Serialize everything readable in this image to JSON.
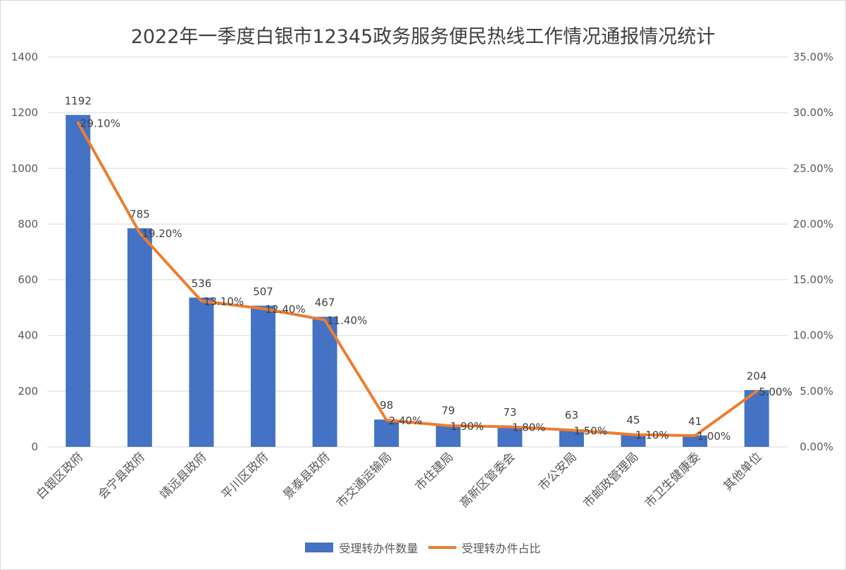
{
  "chart_data": {
    "type": "bar",
    "title": "2022年一季度白银市12345政务服务便民热线工作情况通报情况统计",
    "categories": [
      "白银区政府",
      "会宁县政府",
      "靖远县政府",
      "平川区政府",
      "景泰县政府",
      "市交通运输局",
      "市住建局",
      "高新区管委会",
      "市公安局",
      "市邮政管理局",
      "市卫生健康委",
      "其他单位"
    ],
    "series": [
      {
        "name": "受理转办件数量",
        "type": "bar",
        "axis": "left",
        "color": "#4472c4",
        "values": [
          1192,
          785,
          536,
          507,
          467,
          98,
          79,
          73,
          63,
          45,
          41,
          204
        ],
        "labels": [
          "1192",
          "785",
          "536",
          "507",
          "467",
          "98",
          "79",
          "73",
          "63",
          "45",
          "41",
          "204"
        ]
      },
      {
        "name": "受理转办件占比",
        "type": "line",
        "axis": "right",
        "color": "#ed7d31",
        "values": [
          29.1,
          19.2,
          13.1,
          12.4,
          11.4,
          2.4,
          1.9,
          1.8,
          1.5,
          1.1,
          1.0,
          5.0
        ],
        "labels": [
          "29.10%",
          "19.20%",
          "13.10%",
          "12.40%",
          "11.40%",
          "2.40%",
          "1.90%",
          "1.80%",
          "1.50%",
          "1.10%",
          "1.00%",
          "5.00%"
        ]
      }
    ],
    "ylim_left": [
      0,
      1400
    ],
    "yticks_left": [
      "0",
      "200",
      "400",
      "600",
      "800",
      "1000",
      "1200",
      "1400"
    ],
    "ylim_right": [
      0,
      35
    ],
    "yticks_right": [
      "0.00%",
      "5.00%",
      "10.00%",
      "15.00%",
      "20.00%",
      "25.00%",
      "30.00%",
      "35.00%"
    ],
    "grid": true,
    "legend_position": "bottom"
  }
}
